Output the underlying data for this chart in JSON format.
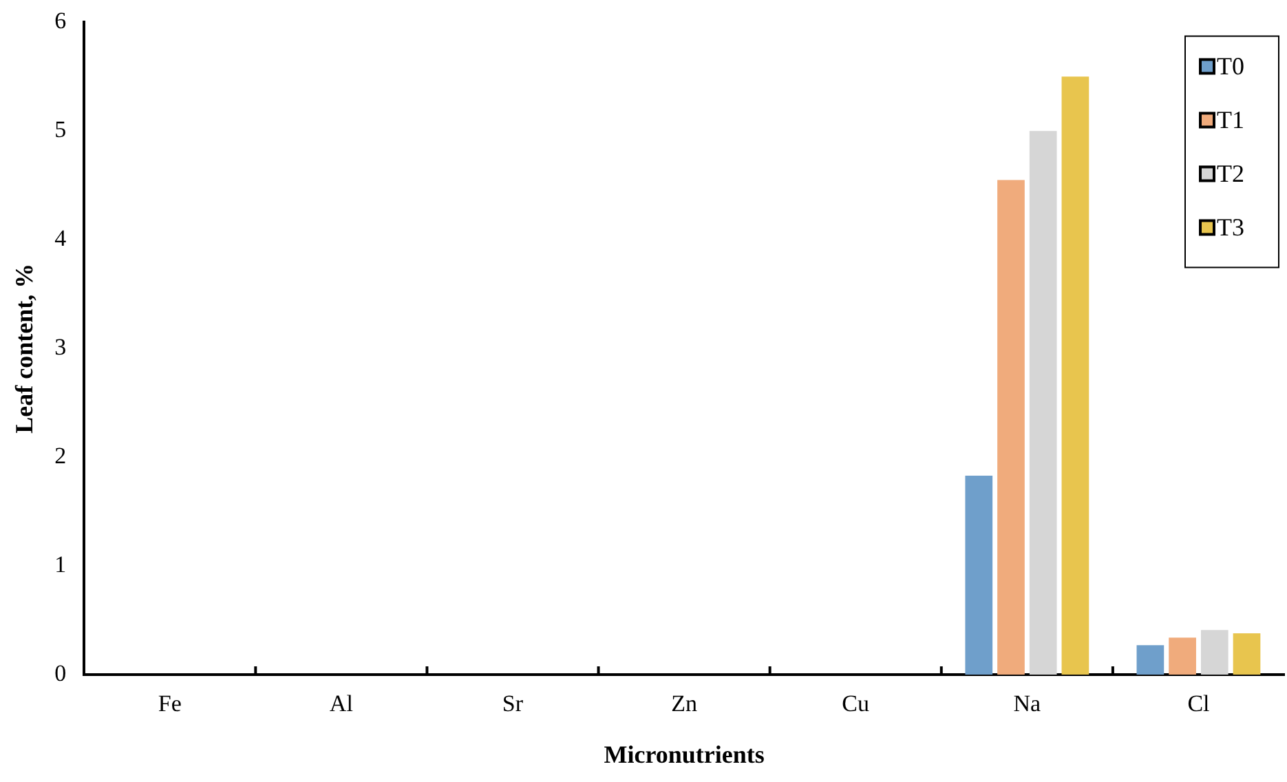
{
  "chart_data": {
    "type": "bar",
    "xlabel": "Micronutrients",
    "ylabel": "Leaf content, %",
    "categories": [
      "Fe",
      "Al",
      "Sr",
      "Zn",
      "Cu",
      "Na",
      "Cl"
    ],
    "series": [
      {
        "name": "T0",
        "color": "#6f9fcb",
        "values": [
          0,
          0,
          0,
          0,
          0,
          1.83,
          0.27
        ]
      },
      {
        "name": "T1",
        "color": "#f0ab7c",
        "values": [
          0,
          0,
          0,
          0,
          0,
          4.55,
          0.34
        ]
      },
      {
        "name": "T2",
        "color": "#d6d6d6",
        "values": [
          0,
          0,
          0,
          0,
          0,
          5.0,
          0.41
        ]
      },
      {
        "name": "T3",
        "color": "#e8c54e",
        "values": [
          0,
          0,
          0,
          0,
          0,
          5.5,
          0.38
        ]
      }
    ],
    "ylim": [
      0,
      6
    ],
    "yticks": [
      0,
      1,
      2,
      3,
      4,
      5,
      6
    ],
    "grid": false,
    "legend": "top right"
  }
}
